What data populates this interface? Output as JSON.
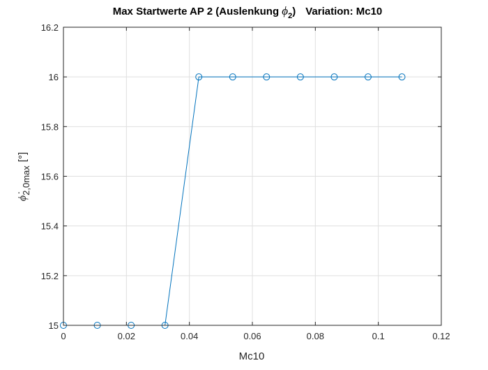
{
  "chart_data": {
    "type": "line",
    "title_parts": {
      "main": "Max Startwerte AP 2 (Auslenkung ",
      "symbol": "ϕ",
      "symbol_sub": "2",
      "close": ")",
      "variation": "Variation: Mc10"
    },
    "xlabel": "Mc10",
    "ylabel_parts": {
      "symbol": "ϕ̇",
      "sub": "2,0max",
      "unit": "[°]"
    },
    "xlim": [
      0,
      0.12
    ],
    "ylim": [
      15,
      16.2
    ],
    "x_ticks": [
      0,
      0.02,
      0.04,
      0.06,
      0.08,
      0.1,
      0.12
    ],
    "x_tick_labels": [
      "0",
      "0.02",
      "0.04",
      "0.06",
      "0.08",
      "0.1",
      "0.12"
    ],
    "y_ticks": [
      15,
      15.2,
      15.4,
      15.6,
      15.8,
      16,
      16.2
    ],
    "y_tick_labels": [
      "15",
      "15.2",
      "15.4",
      "15.6",
      "15.8",
      "16",
      "16.2"
    ],
    "grid": true,
    "series": [
      {
        "color": "#0072BD",
        "marker": "circle-open",
        "x": [
          0,
          0.01075,
          0.0215,
          0.03225,
          0.043,
          0.05375,
          0.0645,
          0.07525,
          0.086,
          0.09675,
          0.1075
        ],
        "y": [
          15,
          15,
          15,
          15,
          16,
          16,
          16,
          16,
          16,
          16,
          16
        ]
      }
    ]
  }
}
